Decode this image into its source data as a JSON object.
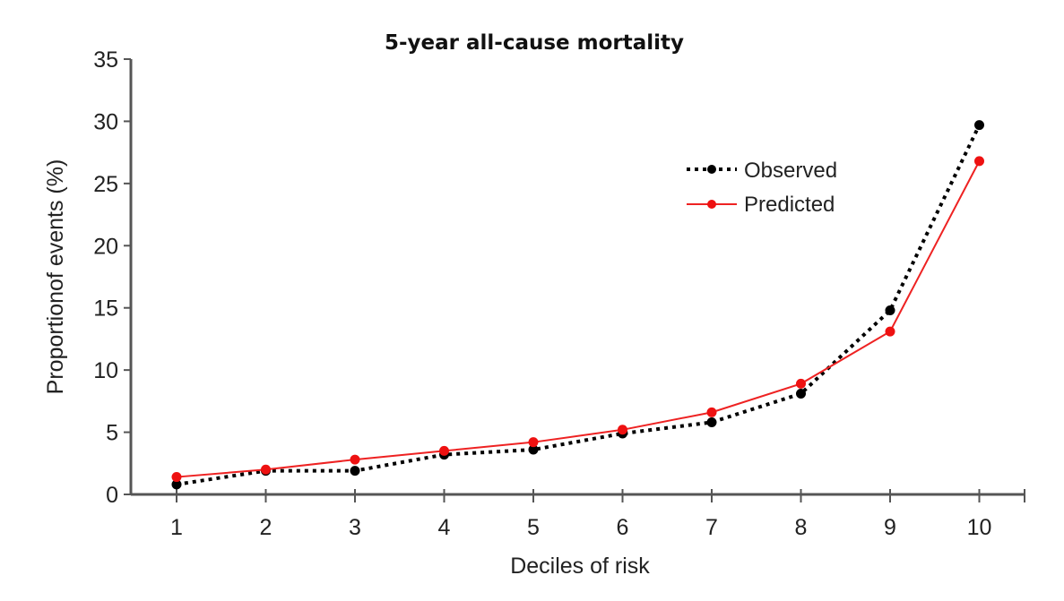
{
  "chart_data": {
    "type": "line",
    "title": "5-year all-cause mortality",
    "xlabel": "Deciles of risk",
    "ylabel": "Proportionof events (%)",
    "x": [
      1,
      2,
      3,
      4,
      5,
      6,
      7,
      8,
      9,
      10
    ],
    "x_tick_labels": [
      "1",
      "2",
      "3",
      "4",
      "5",
      "6",
      "7",
      "8",
      "9",
      "10"
    ],
    "y_ticks": [
      0,
      5,
      10,
      15,
      20,
      25,
      30,
      35
    ],
    "y_tick_labels": [
      "0",
      "5",
      "10",
      "15",
      "20",
      "25",
      "30",
      "35"
    ],
    "ylim": [
      0,
      35
    ],
    "xlim": [
      0.5,
      10.5
    ],
    "grid": false,
    "legend_position": "upper-right",
    "series": [
      {
        "name": "Observed",
        "color": "#000000",
        "line_style": "dotted",
        "marker": "circle",
        "values": [
          0.8,
          1.9,
          1.9,
          3.2,
          3.6,
          4.9,
          5.8,
          8.1,
          14.8,
          29.7
        ]
      },
      {
        "name": "Predicted",
        "color": "#ee2222",
        "line_style": "solid",
        "marker": "circle",
        "values": [
          1.4,
          2.0,
          2.8,
          3.5,
          4.2,
          5.2,
          6.6,
          8.9,
          13.1,
          26.8
        ]
      }
    ]
  }
}
